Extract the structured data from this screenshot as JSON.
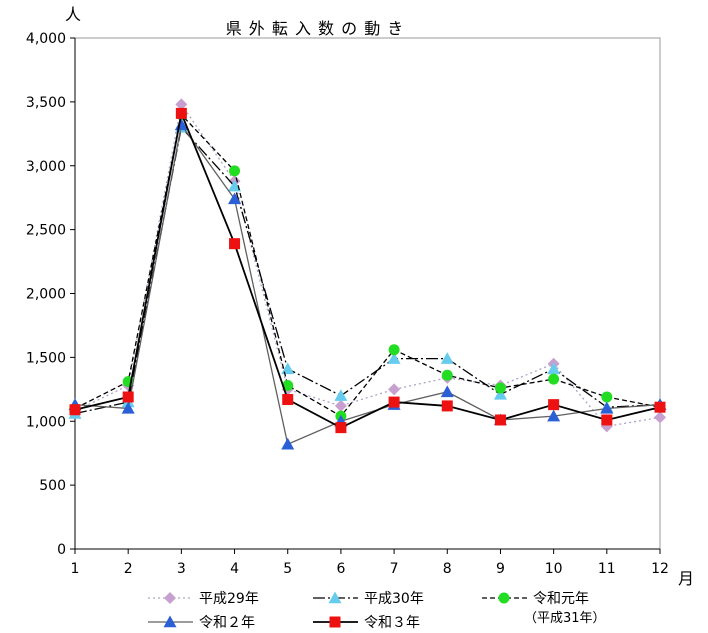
{
  "chart_data": {
    "type": "line",
    "title": "県 外 転 入 数 の 動 き",
    "ylabel": "人",
    "xlabel": "月",
    "x": [
      1,
      2,
      3,
      4,
      5,
      6,
      7,
      8,
      9,
      10,
      11,
      12
    ],
    "x_tick_labels": [
      "1",
      "2",
      "3",
      "4",
      "5",
      "6",
      "7",
      "8",
      "9",
      "10",
      "11",
      "12"
    ],
    "ylim": [
      0,
      4000
    ],
    "y_ticks": [
      0,
      500,
      1000,
      1500,
      2000,
      2500,
      3000,
      3500,
      4000
    ],
    "y_tick_labels": [
      "0",
      "500",
      "1,000",
      "1,500",
      "2,000",
      "2,500",
      "3,000",
      "3,500",
      "4,000"
    ],
    "grid": false,
    "legend_position": "bottom",
    "series": [
      {
        "name": "平成29年",
        "values": [
          1080,
          1280,
          3480,
          2880,
          1250,
          1120,
          1250,
          1340,
          1280,
          1450,
          960,
          1030
        ],
        "color": "#b0a0c8",
        "marker": "diamond",
        "marker_color": "#c8a0d0",
        "line": "dotted"
      },
      {
        "name": "平成30年",
        "values": [
          1060,
          1150,
          3300,
          2840,
          1410,
          1200,
          1490,
          1490,
          1210,
          1410,
          1110,
          1130
        ],
        "color": "#000000",
        "marker": "triangle",
        "marker_color": "#66ccee",
        "line": "longdash"
      },
      {
        "name": "令和元年",
        "name_sub": "（平成31年）",
        "values": [
          1100,
          1310,
          3400,
          2960,
          1280,
          1040,
          1560,
          1360,
          1260,
          1330,
          1190,
          1110
        ],
        "color": "#000000",
        "marker": "circle",
        "marker_color": "#22dd22",
        "line": "dash"
      },
      {
        "name": "令和２年",
        "values": [
          1130,
          1100,
          3320,
          2740,
          820,
          1000,
          1130,
          1230,
          1010,
          1040,
          1100,
          1130
        ],
        "color": "#606060",
        "marker": "triangle",
        "marker_color": "#2a5fd6",
        "line": "solid"
      },
      {
        "name": "令和３年",
        "values": [
          1090,
          1190,
          3410,
          2390,
          1170,
          950,
          1150,
          1120,
          1010,
          1130,
          1010,
          1110
        ],
        "color": "#000000",
        "marker": "square",
        "marker_color": "#ee1111",
        "line": "solid"
      }
    ]
  }
}
